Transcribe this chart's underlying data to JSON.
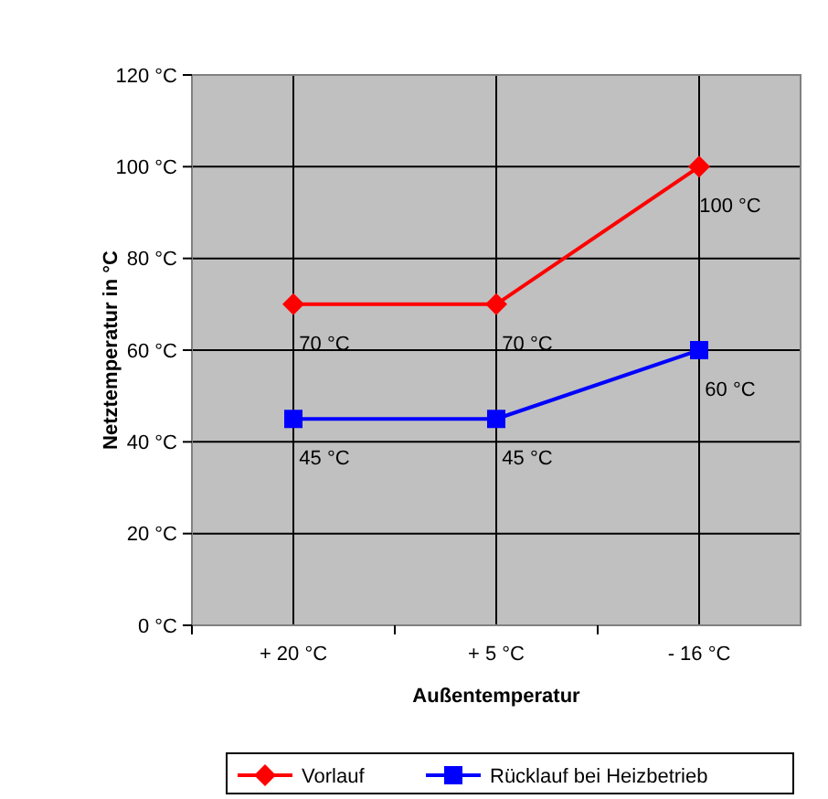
{
  "chart_data": {
    "type": "line",
    "xlabel": "Außentemperatur",
    "ylabel": "Netztemperatur in °C",
    "categories": [
      "+ 20 °C",
      "+ 5 °C",
      "- 16 °C"
    ],
    "ylim": [
      0,
      120
    ],
    "yticks": [
      {
        "value": 0,
        "label": "0 °C"
      },
      {
        "value": 20,
        "label": "20 °C"
      },
      {
        "value": 40,
        "label": "40 °C"
      },
      {
        "value": 60,
        "label": "60 °C"
      },
      {
        "value": 80,
        "label": "80 °C"
      },
      {
        "value": 100,
        "label": "100 °C"
      },
      {
        "value": 120,
        "label": "120 °C"
      }
    ],
    "grid": true,
    "legend": "bottom",
    "line_style": "solid",
    "series": [
      {
        "name": "Vorlauf",
        "color": "#ff0000",
        "marker": "diamond",
        "values": [
          70,
          70,
          100
        ],
        "value_labels": [
          "70 °C",
          "70 °C",
          "100 °C"
        ]
      },
      {
        "name": "Rücklauf bei Heizbetrieb",
        "color": "#0000ff",
        "marker": "square",
        "values": [
          45,
          45,
          60
        ],
        "value_labels": [
          "45 °C",
          "45 °C",
          "60 °C"
        ]
      }
    ]
  }
}
